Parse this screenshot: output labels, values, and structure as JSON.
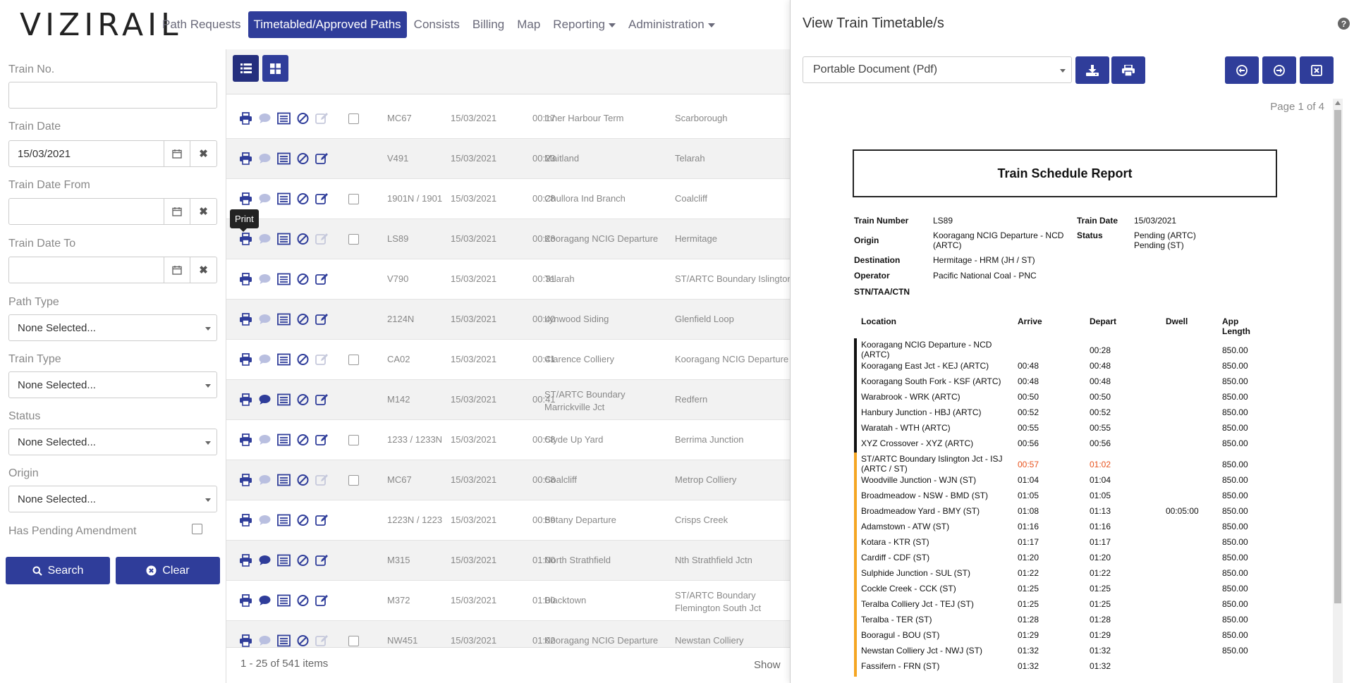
{
  "app": {
    "logo_text": "VIZIRAIL",
    "nav": [
      {
        "label": "Path Requests",
        "active": false
      },
      {
        "label": "Timetabled/Approved Paths",
        "active": true
      },
      {
        "label": "Consists",
        "active": false
      },
      {
        "label": "Billing",
        "active": false
      },
      {
        "label": "Map",
        "active": false
      },
      {
        "label": "Reporting",
        "active": false,
        "dropdown": true
      },
      {
        "label": "Administration",
        "active": false,
        "dropdown": true
      }
    ],
    "accent": "#2f3d9a"
  },
  "filters": {
    "train_no_label": "Train No.",
    "train_no_value": "",
    "train_date_label": "Train Date",
    "train_date_value": "15/03/2021",
    "train_date_from_label": "Train Date From",
    "train_date_from_value": "",
    "train_date_to_label": "Train Date To",
    "train_date_to_value": "",
    "path_type_label": "Path Type",
    "path_type_value": "None Selected...",
    "train_type_label": "Train Type",
    "train_type_value": "None Selected...",
    "status_label": "Status",
    "status_value": "None Selected...",
    "origin_label": "Origin",
    "origin_value": "None Selected...",
    "pending_label": "Has Pending Amendment",
    "search_label": "Search",
    "clear_label": "Clear"
  },
  "grid": {
    "tooltip": "Print",
    "rows": [
      {
        "train": "MC67",
        "date": "15/03/2021",
        "time": "00:17",
        "origin": "Inner Harbour Term",
        "dest": "Scarborough",
        "comment": false,
        "edit_enabled": false,
        "checkbox": true
      },
      {
        "train": "V491",
        "date": "15/03/2021",
        "time": "00:23",
        "origin": "Maitland",
        "dest": "Telarah",
        "comment": false,
        "edit_enabled": true,
        "checkbox": false
      },
      {
        "train": "1901N / 1901",
        "date": "15/03/2021",
        "time": "00:28",
        "origin": "Chullora Ind Branch",
        "dest": "Coalcliff",
        "comment": false,
        "edit_enabled": true,
        "checkbox": true
      },
      {
        "train": "LS89",
        "date": "15/03/2021",
        "time": "00:28",
        "origin": "Kooragang NCIG Departure",
        "dest": "Hermitage",
        "comment": false,
        "edit_enabled": false,
        "checkbox": true
      },
      {
        "train": "V790",
        "date": "15/03/2021",
        "time": "00:31",
        "origin": "Telarah",
        "dest": "ST/ARTC Boundary Islington J",
        "comment": false,
        "edit_enabled": true,
        "checkbox": false
      },
      {
        "train": "2124N",
        "date": "15/03/2021",
        "time": "00:40",
        "origin": "Lynwood Siding",
        "dest": "Glenfield Loop",
        "comment": false,
        "edit_enabled": true,
        "checkbox": false
      },
      {
        "train": "CA02",
        "date": "15/03/2021",
        "time": "00:41",
        "origin": "Clarence Colliery",
        "dest": "Kooragang NCIG Departure",
        "comment": false,
        "edit_enabled": false,
        "checkbox": true
      },
      {
        "train": "M142",
        "date": "15/03/2021",
        "time": "00:41",
        "origin": "ST/ARTC Boundary Marrickville Jct",
        "dest": "Redfern",
        "comment": true,
        "edit_enabled": true,
        "checkbox": false
      },
      {
        "train": "1233 / 1233N",
        "date": "15/03/2021",
        "time": "00:58",
        "origin": "Clyde Up Yard",
        "dest": "Berrima Junction",
        "comment": false,
        "edit_enabled": true,
        "checkbox": true
      },
      {
        "train": "MC67",
        "date": "15/03/2021",
        "time": "00:58",
        "origin": "Coalcliff",
        "dest": "Metrop Colliery",
        "comment": false,
        "edit_enabled": false,
        "checkbox": true
      },
      {
        "train": "1223N / 1223",
        "date": "15/03/2021",
        "time": "00:59",
        "origin": "Botany Departure",
        "dest": "Crisps Creek",
        "comment": false,
        "edit_enabled": true,
        "checkbox": false
      },
      {
        "train": "M315",
        "date": "15/03/2021",
        "time": "01:00",
        "origin": "North Strathfield",
        "dest": "Nth Strathfield Jctn",
        "comment": true,
        "edit_enabled": true,
        "checkbox": false
      },
      {
        "train": "M372",
        "date": "15/03/2021",
        "time": "01:00",
        "origin": "Blacktown",
        "dest": "ST/ARTC Boundary Flemington South Jct",
        "comment": true,
        "edit_enabled": true,
        "checkbox": false
      },
      {
        "train": "NW451",
        "date": "15/03/2021",
        "time": "01:02",
        "origin": "Kooragang NCIG Departure",
        "dest": "Newstan Colliery",
        "comment": false,
        "edit_enabled": false,
        "checkbox": true
      }
    ],
    "footer_count": "1 - 25 of 541 items",
    "footer_show": "Show"
  },
  "panel": {
    "title": "View Train Timetable/s",
    "format_value": "Portable Document (Pdf)",
    "page_info": "Page 1 of 4",
    "report": {
      "title": "Train Schedule Report",
      "train_number_label": "Train Number",
      "train_number": "LS89",
      "train_date_label": "Train Date",
      "train_date": "15/03/2021",
      "origin_label": "Origin",
      "origin": "Kooragang NCIG Departure - NCD (ARTC)",
      "status_label": "Status",
      "status": "Pending (ARTC) Pending (ST)",
      "destination_label": "Destination",
      "destination": "Hermitage - HRM (JH / ST)",
      "operator_label": "Operator",
      "operator": "Pacific National Coal - PNC",
      "stn_label": "STN/TAA/CTN",
      "col_location": "Location",
      "col_arrive": "Arrive",
      "col_depart": "Depart",
      "col_dwell": "Dwell",
      "col_applen": "App Length",
      "rows": [
        {
          "loc": "Kooragang NCIG Departure - NCD (ARTC)",
          "arr": "",
          "dep": "00:28",
          "dwell": "",
          "len": "850.00",
          "bar": "#111",
          "highlight": false
        },
        {
          "loc": "Kooragang East Jct - KEJ (ARTC)",
          "arr": "00:48",
          "dep": "00:48",
          "dwell": "",
          "len": "850.00",
          "bar": "#111",
          "highlight": false
        },
        {
          "loc": "Kooragang South Fork - KSF (ARTC)",
          "arr": "00:48",
          "dep": "00:48",
          "dwell": "",
          "len": "850.00",
          "bar": "#111",
          "highlight": false
        },
        {
          "loc": "Warabrook - WRK (ARTC)",
          "arr": "00:50",
          "dep": "00:50",
          "dwell": "",
          "len": "850.00",
          "bar": "#111",
          "highlight": false
        },
        {
          "loc": "Hanbury Junction - HBJ (ARTC)",
          "arr": "00:52",
          "dep": "00:52",
          "dwell": "",
          "len": "850.00",
          "bar": "#111",
          "highlight": false
        },
        {
          "loc": "Waratah - WTH (ARTC)",
          "arr": "00:55",
          "dep": "00:55",
          "dwell": "",
          "len": "850.00",
          "bar": "#111",
          "highlight": false
        },
        {
          "loc": "XYZ Crossover - XYZ (ARTC)",
          "arr": "00:56",
          "dep": "00:56",
          "dwell": "",
          "len": "850.00",
          "bar": "#111",
          "highlight": false
        },
        {
          "loc": "ST/ARTC Boundary Islington Jct - ISJ (ARTC / ST)",
          "arr": "00:57",
          "dep": "01:02",
          "dwell": "",
          "len": "850.00",
          "bar": "#f5a623",
          "highlight": true
        },
        {
          "loc": "Woodville Junction - WJN (ST)",
          "arr": "01:04",
          "dep": "01:04",
          "dwell": "",
          "len": "850.00",
          "bar": "#f5a623",
          "highlight": false
        },
        {
          "loc": "Broadmeadow - NSW - BMD (ST)",
          "arr": "01:05",
          "dep": "01:05",
          "dwell": "",
          "len": "850.00",
          "bar": "#f5a623",
          "highlight": false
        },
        {
          "loc": "Broadmeadow Yard - BMY (ST)",
          "arr": "01:08",
          "dep": "01:13",
          "dwell": "00:05:00",
          "len": "850.00",
          "bar": "#f5a623",
          "highlight": false
        },
        {
          "loc": "Adamstown - ATW (ST)",
          "arr": "01:16",
          "dep": "01:16",
          "dwell": "",
          "len": "850.00",
          "bar": "#f5a623",
          "highlight": false
        },
        {
          "loc": "Kotara - KTR (ST)",
          "arr": "01:17",
          "dep": "01:17",
          "dwell": "",
          "len": "850.00",
          "bar": "#f5a623",
          "highlight": false
        },
        {
          "loc": "Cardiff - CDF (ST)",
          "arr": "01:20",
          "dep": "01:20",
          "dwell": "",
          "len": "850.00",
          "bar": "#f5a623",
          "highlight": false
        },
        {
          "loc": "Sulphide Junction - SUL (ST)",
          "arr": "01:22",
          "dep": "01:22",
          "dwell": "",
          "len": "850.00",
          "bar": "#f5a623",
          "highlight": false
        },
        {
          "loc": "Cockle Creek - CCK (ST)",
          "arr": "01:25",
          "dep": "01:25",
          "dwell": "",
          "len": "850.00",
          "bar": "#f5a623",
          "highlight": false
        },
        {
          "loc": "Teralba Colliery Jct - TEJ (ST)",
          "arr": "01:25",
          "dep": "01:25",
          "dwell": "",
          "len": "850.00",
          "bar": "#f5a623",
          "highlight": false
        },
        {
          "loc": "Teralba - TER (ST)",
          "arr": "01:28",
          "dep": "01:28",
          "dwell": "",
          "len": "850.00",
          "bar": "#f5a623",
          "highlight": false
        },
        {
          "loc": "Booragul - BOU (ST)",
          "arr": "01:29",
          "dep": "01:29",
          "dwell": "",
          "len": "850.00",
          "bar": "#f5a623",
          "highlight": false
        },
        {
          "loc": "Newstan Colliery Jct - NWJ (ST)",
          "arr": "01:32",
          "dep": "01:32",
          "dwell": "",
          "len": "850.00",
          "bar": "#f5a623",
          "highlight": false
        },
        {
          "loc": "Fassifern - FRN (ST)",
          "arr": "01:32",
          "dep": "01:32",
          "dwell": "",
          "len": "",
          "bar": "#f5a623",
          "highlight": false
        }
      ]
    }
  }
}
